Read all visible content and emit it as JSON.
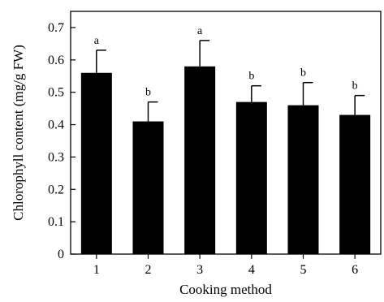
{
  "chart_data": {
    "type": "bar",
    "title": "",
    "xlabel": "Cooking method",
    "ylabel": "Chlorophyll content (mg/g FW)",
    "categories": [
      "1",
      "2",
      "3",
      "4",
      "5",
      "6"
    ],
    "values": [
      0.56,
      0.41,
      0.58,
      0.47,
      0.46,
      0.43
    ],
    "error_up": [
      0.07,
      0.06,
      0.08,
      0.05,
      0.07,
      0.06
    ],
    "significance": [
      "a",
      "b",
      "a",
      "b",
      "b",
      "b"
    ],
    "ylim": [
      0,
      0.75
    ],
    "yticks": [
      "0",
      "0.1",
      "0.2",
      "0.3",
      "0.4",
      "0.5",
      "0.6",
      "0.7"
    ],
    "bar_color": "#000000",
    "grid": false,
    "legend": "none"
  }
}
